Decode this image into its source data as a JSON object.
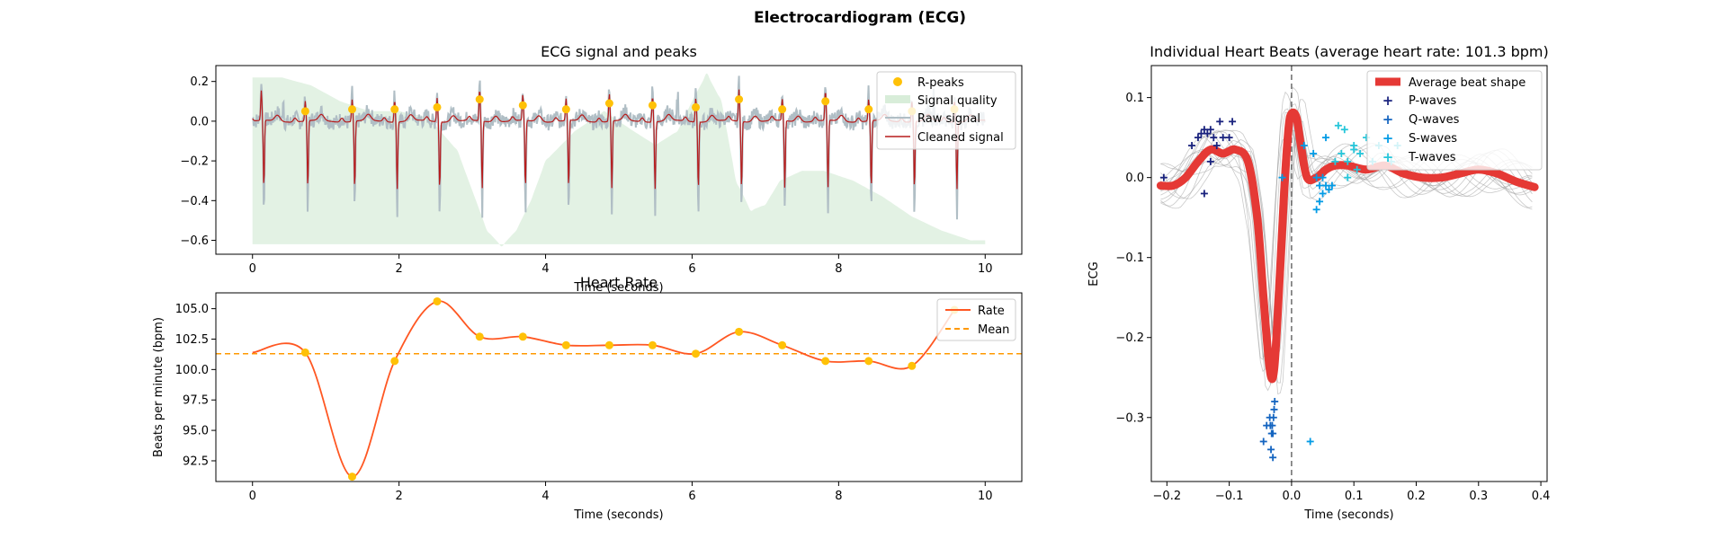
{
  "suptitle": "Electrocardiogram (ECG)",
  "colors": {
    "raw": "#b0bec5",
    "cleaned": "#b71c1c",
    "rpeak": "#ffc107",
    "quality": "#c8e6c9",
    "rate": "#ff5722",
    "mean": "#ff9800",
    "avg_beat": "#e53935",
    "beats": "#9e9e9e",
    "p_waves": "#1a237e",
    "q_waves": "#1565c0",
    "s_waves": "#039be5",
    "t_waves": "#26c6da",
    "vline": "#555555"
  },
  "chart_data": [
    {
      "id": "signal",
      "type": "line",
      "title": "ECG signal and peaks",
      "xlabel": "Time (seconds)",
      "ylabel": "",
      "xlim": [
        -0.5,
        10.5
      ],
      "ylim": [
        -0.67,
        0.28
      ],
      "xticks": [
        0,
        2,
        4,
        6,
        8,
        10
      ],
      "yticks": [
        -0.6,
        -0.4,
        -0.2,
        0.0,
        0.2
      ],
      "ytick_labels": [
        "−0.6",
        "−0.4",
        "−0.2",
        "0.0",
        "0.2"
      ],
      "legend": [
        "R-peaks",
        "Signal quality",
        "Raw signal",
        "Cleaned signal"
      ],
      "legend_position": "top-right",
      "r_peaks": {
        "x": [
          0.72,
          1.36,
          1.94,
          2.52,
          3.1,
          3.69,
          4.28,
          4.87,
          5.46,
          6.05,
          6.64,
          7.23,
          7.82,
          8.41,
          9.0,
          9.58
        ],
        "y": [
          0.05,
          0.06,
          0.06,
          0.07,
          0.11,
          0.08,
          0.06,
          0.09,
          0.08,
          0.07,
          0.11,
          0.06,
          0.1,
          0.06,
          0.05,
          0.06
        ]
      },
      "quality": {
        "x": [
          0.0,
          0.4,
          0.8,
          1.2,
          1.6,
          2.0,
          2.4,
          2.8,
          3.0,
          3.2,
          3.4,
          3.6,
          3.8,
          4.0,
          4.4,
          4.8,
          5.2,
          5.5,
          5.8,
          6.0,
          6.2,
          6.4,
          6.6,
          6.8,
          7.0,
          7.2,
          7.5,
          7.8,
          8.2,
          8.6,
          9.0,
          9.4,
          9.8,
          10.0
        ],
        "y": [
          0.22,
          0.22,
          0.18,
          0.1,
          0.05,
          0.05,
          0.02,
          -0.15,
          -0.35,
          -0.55,
          -0.63,
          -0.55,
          -0.4,
          -0.2,
          -0.05,
          0.05,
          -0.05,
          -0.12,
          -0.05,
          0.1,
          0.24,
          0.1,
          -0.3,
          -0.45,
          -0.42,
          -0.3,
          -0.25,
          -0.25,
          -0.3,
          -0.38,
          -0.48,
          -0.55,
          -0.6,
          -0.6
        ]
      }
    },
    {
      "id": "rate",
      "type": "line",
      "title": "Heart Rate",
      "xlabel": "Time (seconds)",
      "ylabel": "Beats per minute (bpm)",
      "xlim": [
        -0.5,
        10.5
      ],
      "ylim": [
        90.8,
        106.3
      ],
      "xticks": [
        0,
        2,
        4,
        6,
        8,
        10
      ],
      "yticks": [
        92.5,
        95.0,
        97.5,
        100.0,
        102.5,
        105.0
      ],
      "legend": [
        "Rate",
        "Mean"
      ],
      "legend_position": "top-right",
      "mean": 101.3,
      "points": {
        "x": [
          0.72,
          1.36,
          1.94,
          2.52,
          3.1,
          3.69,
          4.28,
          4.87,
          5.46,
          6.05,
          6.64,
          7.23,
          7.82,
          8.41,
          9.0,
          9.58
        ],
        "y": [
          101.4,
          91.2,
          100.7,
          105.6,
          102.7,
          102.7,
          102.0,
          102.0,
          102.0,
          101.3,
          103.1,
          102.0,
          100.7,
          100.7,
          100.3,
          104.9
        ]
      }
    },
    {
      "id": "beats",
      "type": "line",
      "title": "Individual Heart Beats (average heart rate: 101.3 bpm)",
      "xlabel": "Time (seconds)",
      "ylabel": "ECG",
      "xlim": [
        -0.225,
        0.41
      ],
      "ylim": [
        -0.38,
        0.14
      ],
      "xticks": [
        -0.2,
        -0.1,
        0.0,
        0.1,
        0.2,
        0.3,
        0.4
      ],
      "xtick_labels": [
        "−0.2",
        "−0.1",
        "0.0",
        "0.1",
        "0.2",
        "0.3",
        "0.4"
      ],
      "yticks": [
        -0.3,
        -0.2,
        -0.1,
        0.0,
        0.1
      ],
      "ytick_labels": [
        "−0.3",
        "−0.2",
        "−0.1",
        "0.0",
        "0.1"
      ],
      "legend": [
        "Average beat shape",
        "P-waves",
        "Q-waves",
        "S-waves",
        "T-waves"
      ],
      "legend_position": "top-right",
      "average_beat": {
        "x": [
          -0.21,
          -0.19,
          -0.17,
          -0.15,
          -0.13,
          -0.11,
          -0.09,
          -0.07,
          -0.055,
          -0.045,
          -0.035,
          -0.028,
          -0.02,
          -0.012,
          -0.005,
          0.0,
          0.008,
          0.015,
          0.025,
          0.04,
          0.055,
          0.07,
          0.09,
          0.12,
          0.15,
          0.18,
          0.21,
          0.24,
          0.27,
          0.3,
          0.33,
          0.36,
          0.39
        ],
        "y": [
          -0.01,
          -0.01,
          0.0,
          0.02,
          0.035,
          0.03,
          0.035,
          0.02,
          -0.05,
          -0.15,
          -0.24,
          -0.24,
          -0.14,
          -0.02,
          0.06,
          0.08,
          0.075,
          0.04,
          0.0,
          0.0,
          0.01,
          0.015,
          0.015,
          0.01,
          0.015,
          0.005,
          0.0,
          0.0,
          0.005,
          0.01,
          0.005,
          -0.005,
          -0.012
        ]
      },
      "p_waves": {
        "x": [
          -0.205,
          -0.16,
          -0.15,
          -0.145,
          -0.14,
          -0.135,
          -0.13,
          -0.125,
          -0.12,
          -0.115,
          -0.11,
          -0.1,
          -0.095,
          -0.14,
          -0.13
        ],
        "y": [
          0.0,
          0.04,
          0.05,
          0.055,
          0.06,
          0.055,
          0.06,
          0.05,
          0.04,
          0.07,
          0.05,
          0.05,
          0.07,
          -0.02,
          0.02
        ]
      },
      "q_waves": {
        "x": [
          -0.045,
          -0.04,
          -0.035,
          -0.032,
          -0.03,
          -0.028,
          -0.033,
          -0.031,
          -0.029,
          -0.027,
          -0.03,
          -0.034
        ],
        "y": [
          -0.33,
          -0.31,
          -0.3,
          -0.32,
          -0.35,
          -0.29,
          -0.34,
          -0.31,
          -0.3,
          -0.28,
          -0.32,
          -0.31
        ]
      },
      "s_waves": {
        "x": [
          0.02,
          0.035,
          0.04,
          0.045,
          0.05,
          0.055,
          0.06,
          0.045,
          0.04,
          0.05,
          0.055,
          -0.015,
          0.065,
          0.03
        ],
        "y": [
          0.04,
          0.03,
          0.0,
          -0.01,
          -0.02,
          -0.01,
          -0.015,
          -0.03,
          -0.04,
          0.0,
          0.05,
          0.0,
          -0.01,
          -0.33
        ]
      },
      "t_waves": {
        "x": [
          0.07,
          0.08,
          0.085,
          0.09,
          0.1,
          0.105,
          0.11,
          0.12,
          0.14,
          0.16,
          0.17,
          0.09,
          0.075,
          0.1,
          0.13
        ],
        "y": [
          0.02,
          0.03,
          0.06,
          0.02,
          0.04,
          0.01,
          0.03,
          0.05,
          0.04,
          0.02,
          0.04,
          0.0,
          0.065,
          0.035,
          0.02
        ]
      }
    }
  ]
}
